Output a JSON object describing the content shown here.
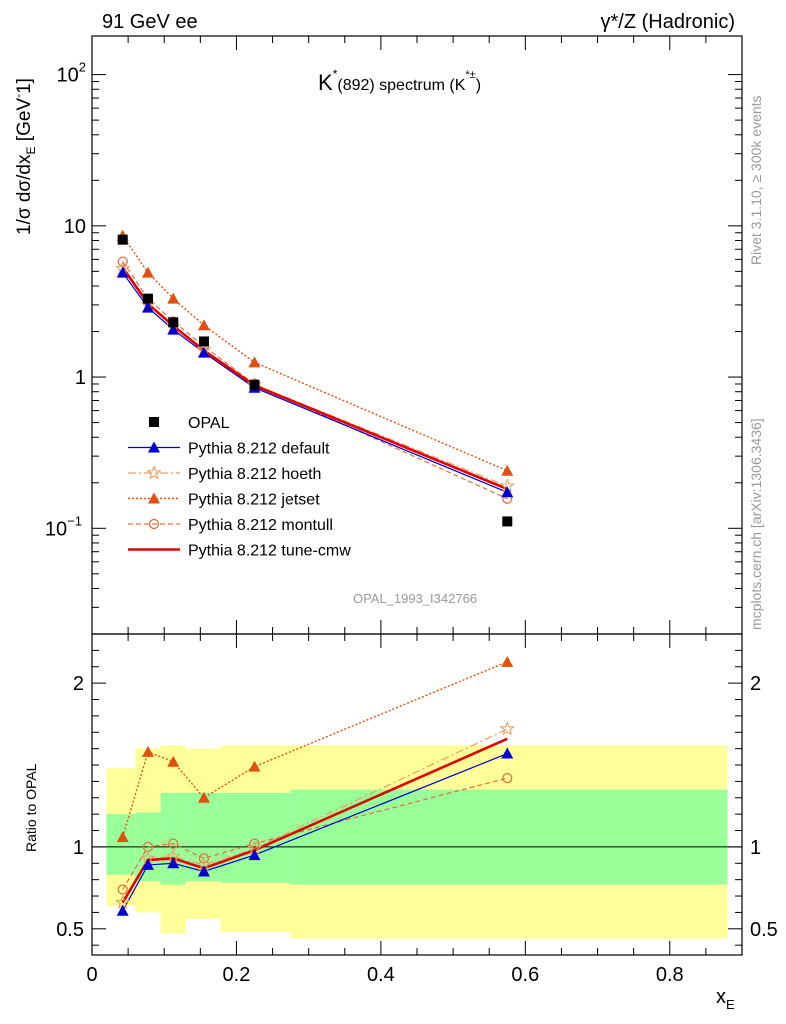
{
  "header": {
    "left": "91 GeV ee",
    "right": "γ*/Z (Hadronic)"
  },
  "side_labels": {
    "rivet": "Rivet 3.1.10, ≥ 300k events",
    "mcplots": "mcplots.cern.ch [arXiv:1306.3436]"
  },
  "watermark": "OPAL_1993_I342766",
  "colors": {
    "data": "#000000",
    "default": "#0000cc",
    "hoeth": "#e8a060",
    "jetset": "#e05010",
    "montull": "#e07040",
    "tune_cmw": "#e00000",
    "band_inner": "#99ff99",
    "band_outer": "#ffff99"
  },
  "chart_data": [
    {
      "type": "line",
      "title_parts": {
        "main": "K",
        "sup": "*",
        "sub": "(892) spectrum (K",
        "sup2": "*±",
        "end": ")"
      },
      "ylabel": "1/σ dσ/dx_E [GeV⁻1]",
      "yscale": "log",
      "ylim": [
        0.02,
        180
      ],
      "xlim": [
        0,
        0.9
      ],
      "yticks": [
        {
          "value": 100,
          "label": "10",
          "sup": "2"
        },
        {
          "value": 10,
          "label": "10",
          "sup": ""
        },
        {
          "value": 1,
          "label": "1",
          "sup": ""
        },
        {
          "value": 0.1,
          "label": "10",
          "sup": "−1"
        }
      ],
      "x": [
        0.0425,
        0.0775,
        0.1125,
        0.155,
        0.225,
        0.575
      ],
      "series": [
        {
          "name": "OPAL",
          "key": "data",
          "marker": "square",
          "line": "none",
          "values": [
            8.1,
            3.3,
            2.3,
            1.72,
            0.89,
            0.111
          ]
        },
        {
          "name": "Pythia 8.212 default",
          "key": "default",
          "marker": "triangle",
          "line": "solid",
          "values": [
            4.9,
            2.88,
            2.06,
            1.45,
            0.85,
            0.173
          ]
        },
        {
          "name": "Pythia 8.212 hoeth",
          "key": "hoeth",
          "marker": "star",
          "line": "dashdot",
          "values": [
            5.2,
            3.0,
            2.15,
            1.52,
            0.89,
            0.19
          ]
        },
        {
          "name": "Pythia 8.212 jetset",
          "key": "jetset",
          "marker": "triangle",
          "line": "dotted",
          "values": [
            8.6,
            4.9,
            3.3,
            2.2,
            1.25,
            0.24
          ]
        },
        {
          "name": "Pythia 8.212 montull",
          "key": "montull",
          "marker": "circle",
          "line": "dashed",
          "values": [
            5.8,
            3.3,
            2.33,
            1.6,
            0.9,
            0.157
          ]
        },
        {
          "name": "Pythia 8.212 tune-cmw",
          "key": "tune_cmw",
          "marker": "none",
          "line": "solid-thick",
          "values": [
            5.3,
            3.05,
            2.18,
            1.5,
            0.88,
            0.182
          ]
        }
      ]
    },
    {
      "type": "line",
      "ylabel": "Ratio to OPAL",
      "ylim": [
        0.34,
        2.3
      ],
      "xlabel": "x_E",
      "xlim": [
        0,
        0.9
      ],
      "yticks": [
        2,
        1,
        0.5
      ],
      "xticks": [
        0,
        0.2,
        0.4,
        0.6,
        0.8
      ],
      "band_edges": [
        0.02,
        0.06,
        0.095,
        0.13,
        0.178,
        0.275,
        0.88
      ],
      "band_inner": [
        [
          0.83,
          1.2
        ],
        [
          0.79,
          1.21
        ],
        [
          0.77,
          1.33
        ],
        [
          0.79,
          1.33
        ],
        [
          0.78,
          1.33
        ],
        [
          0.77,
          1.35
        ]
      ],
      "band_outer": [
        [
          0.64,
          1.48
        ],
        [
          0.6,
          1.6
        ],
        [
          0.47,
          1.62
        ],
        [
          0.56,
          1.6
        ],
        [
          0.48,
          1.62
        ],
        [
          0.44,
          1.62
        ]
      ],
      "x": [
        0.0425,
        0.0775,
        0.1125,
        0.155,
        0.225,
        0.575
      ],
      "series": [
        {
          "key": "default",
          "values": [
            0.61,
            0.89,
            0.9,
            0.85,
            0.95,
            1.57
          ]
        },
        {
          "key": "hoeth",
          "values": [
            0.66,
            0.93,
            0.94,
            0.89,
            0.99,
            1.72
          ]
        },
        {
          "key": "jetset",
          "values": [
            1.06,
            1.58,
            1.52,
            1.3,
            1.49,
            2.13
          ]
        },
        {
          "key": "montull",
          "values": [
            0.74,
            1.0,
            1.02,
            0.93,
            1.02,
            1.42
          ]
        },
        {
          "key": "tune_cmw",
          "values": [
            0.66,
            0.92,
            0.93,
            0.87,
            0.98,
            1.66
          ]
        }
      ]
    }
  ]
}
